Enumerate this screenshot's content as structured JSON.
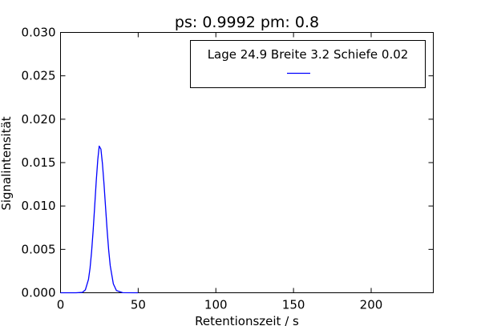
{
  "chart_data": {
    "type": "line",
    "title": "ps: 0.9992 pm: 0.8",
    "xlabel": "Retentionszeit / s",
    "ylabel": "Signalintensität",
    "xlim": [
      0,
      240
    ],
    "ylim": [
      0,
      0.03
    ],
    "x_ticks": [
      0,
      50,
      100,
      150,
      200
    ],
    "x_tick_labels": [
      "0",
      "50",
      "100",
      "150",
      "200"
    ],
    "y_ticks": [
      0,
      0.005,
      0.01,
      0.015,
      0.02,
      0.025,
      0.03
    ],
    "y_tick_labels": [
      "0.000",
      "0.005",
      "0.010",
      "0.015",
      "0.020",
      "0.025",
      "0.030"
    ],
    "grid": false,
    "legend_position": "top-right",
    "series": [
      {
        "name": "Lage 24.9 Breite 3.2 Schiefe 0.02",
        "color": "#0000ff",
        "x": [
          0,
          10,
          14,
          16,
          18,
          19,
          20,
          21,
          22,
          23,
          24,
          24.9,
          26,
          27,
          28,
          29,
          30,
          31,
          32,
          34,
          36,
          40,
          50
        ],
        "y": [
          0,
          0,
          4e-05,
          0.00034,
          0.00154,
          0.00283,
          0.00472,
          0.00717,
          0.01,
          0.01288,
          0.01536,
          0.0169,
          0.01655,
          0.01485,
          0.01252,
          0.00984,
          0.00722,
          0.00492,
          0.00312,
          0.00103,
          0.00025,
          1e-05,
          0
        ]
      }
    ]
  }
}
